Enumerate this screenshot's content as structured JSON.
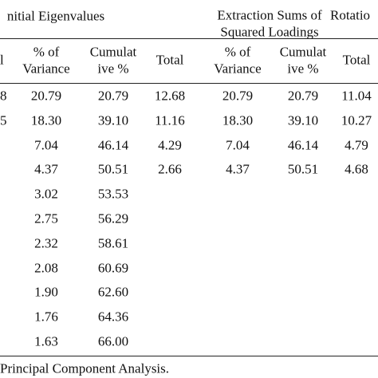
{
  "header": {
    "groups": [
      "nitial Eigenvalues",
      "Extraction Sums of",
      "Squared Loadings",
      "Rotatio"
    ],
    "columns": [
      "l",
      "% of",
      "Variance",
      "Cumulat",
      "ive %",
      "Total",
      "% of",
      "Variance",
      "Cumulat",
      "ive %",
      "Total"
    ]
  },
  "table": {
    "rows": [
      [
        "8",
        "20.79",
        "20.79",
        "12.68",
        "20.79",
        "20.79",
        "11.04"
      ],
      [
        "5",
        "18.30",
        "39.10",
        "11.16",
        "18.30",
        "39.10",
        "10.27"
      ],
      [
        null,
        "7.04",
        "46.14",
        "4.29",
        "7.04",
        "46.14",
        "4.79"
      ],
      [
        null,
        "4.37",
        "50.51",
        "2.66",
        "4.37",
        "50.51",
        "4.68"
      ],
      [
        null,
        "3.02",
        "53.53"
      ],
      [
        null,
        "2.75",
        "56.29"
      ],
      [
        null,
        "2.32",
        "58.61"
      ],
      [
        null,
        "2.08",
        "60.69"
      ],
      [
        null,
        "1.90",
        "62.60"
      ],
      [
        null,
        "1.76",
        "64.36"
      ],
      [
        null,
        "1.63",
        "66.00"
      ]
    ]
  },
  "footer": "Principal Component Analysis."
}
